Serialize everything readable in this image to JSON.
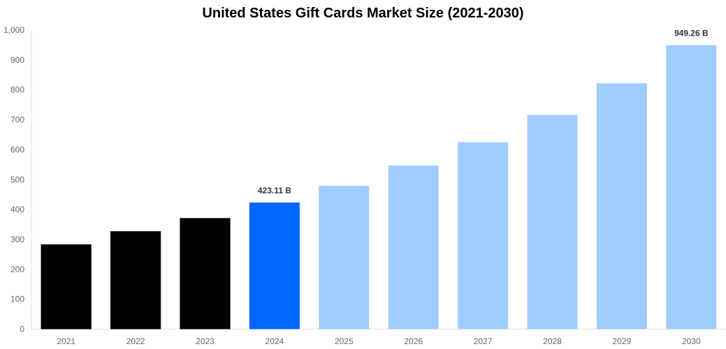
{
  "chart_data": {
    "type": "bar",
    "title": "United States Gift Cards Market Size (2021-2030)",
    "xlabel": "",
    "ylabel": "",
    "categories": [
      "2021",
      "2022",
      "2023",
      "2024",
      "2025",
      "2026",
      "2027",
      "2028",
      "2029",
      "2030"
    ],
    "values": [
      283,
      327,
      371,
      423.11,
      479,
      547,
      625,
      716,
      822,
      949.26
    ],
    "data_labels": {
      "3": "423.11 B",
      "9": "949.26 B"
    },
    "ylim": [
      0,
      1000
    ],
    "yticks": [
      "0",
      "100",
      "200",
      "300",
      "400",
      "500",
      "600",
      "700",
      "800",
      "900",
      "1,000"
    ],
    "grid": false,
    "legend": "none",
    "colors": {
      "historical": "#000000",
      "base_year": "#0066ff",
      "forecast": "#a0ccff"
    },
    "color_by_category": [
      "historical",
      "historical",
      "historical",
      "base_year",
      "forecast",
      "forecast",
      "forecast",
      "forecast",
      "forecast",
      "forecast"
    ]
  }
}
